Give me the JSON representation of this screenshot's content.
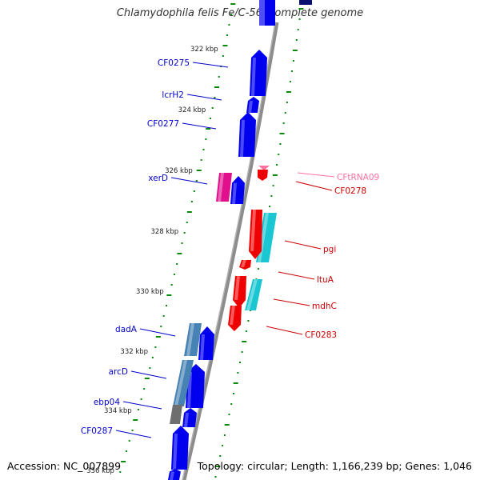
{
  "title": "Chlamydophila felis Fe/C-56, complete genome",
  "footer": {
    "accession": "Accession: NC_007899",
    "summary": "Topology: circular; Length: 1,166,239 bp; Genes: 1,046"
  },
  "ticks": [
    {
      "label": "322 kbp"
    },
    {
      "label": "324 kbp"
    },
    {
      "label": "326 kbp"
    },
    {
      "label": "328 kbp"
    },
    {
      "label": "330 kbp"
    },
    {
      "label": "332 kbp"
    },
    {
      "label": "334 kbp"
    },
    {
      "label": "336 kbp"
    }
  ],
  "left_genes": [
    {
      "label": "CF0275"
    },
    {
      "label": "lcrH2"
    },
    {
      "label": "CF0277"
    },
    {
      "label": "xerD"
    },
    {
      "label": "dadA"
    },
    {
      "label": "arcD"
    },
    {
      "label": "ebp04"
    },
    {
      "label": "CF0287"
    }
  ],
  "right_genes": [
    {
      "label": "CFtRNA09"
    },
    {
      "label": "CF0278"
    },
    {
      "label": "pgi"
    },
    {
      "label": "ltuA"
    },
    {
      "label": "mdhC"
    },
    {
      "label": "CF0283"
    }
  ],
  "colors": {
    "forward_cds": "#0000ee",
    "reverse_cds": "#ee0000",
    "label_forward": "#0000cc",
    "label_reverse": "#cc0000",
    "trna": "#ff6fa0",
    "magenta_feature": "#e0108c",
    "steelblue_feature": "#4682b4",
    "cyan_feature": "#19c6d2",
    "gray_feature": "#6e6e6e",
    "backbone": "#8c8c8c",
    "tick": "#0a8a0a"
  }
}
